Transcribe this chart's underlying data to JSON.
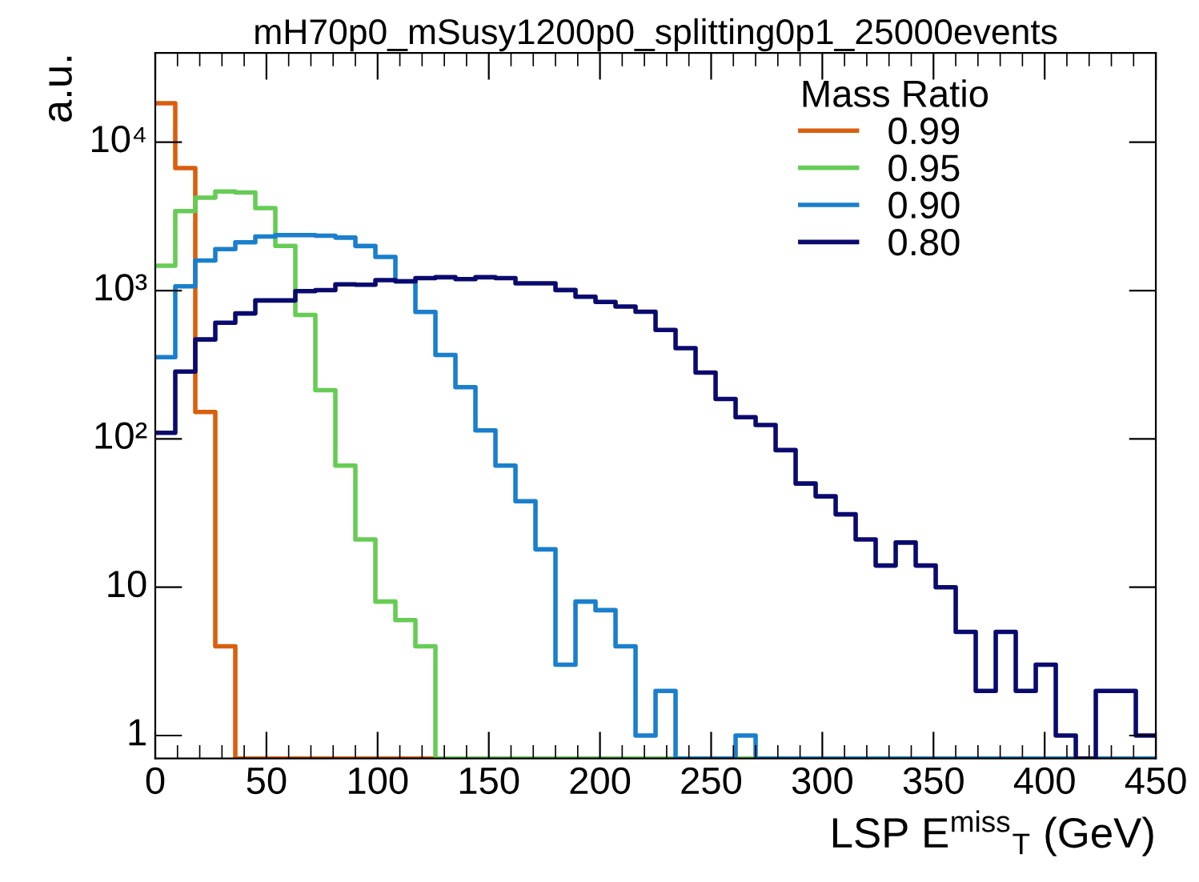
{
  "chart_data": {
    "type": "histogram",
    "title": "mH70p0_mSusy1200p0_splitting0p1_25000events",
    "xlabel": "LSP E$^{miss}$$_{T}$ (GeV)",
    "ylabel": "a.u.",
    "legend_title": "Mass Ratio",
    "legend": "top right",
    "log": "y",
    "grid": false,
    "bins": [
      0,
      9,
      18,
      27,
      36,
      45,
      54,
      63,
      72,
      81,
      90,
      99,
      108,
      117,
      126,
      135,
      144,
      153,
      162,
      171,
      180,
      189,
      198,
      207,
      216,
      225,
      234,
      243,
      252,
      261,
      270,
      279,
      288,
      297,
      306,
      315,
      324,
      333,
      342,
      351,
      360,
      369,
      378,
      387,
      396,
      405,
      414,
      423,
      432,
      441,
      450
    ],
    "series": [
      {
        "name": "0.99",
        "color": "#d95f0e",
        "values": [
          18300,
          6700,
          152,
          4,
          null,
          null,
          null,
          null,
          null,
          null,
          null,
          null,
          null,
          null,
          null,
          null,
          null,
          null,
          null,
          null,
          null,
          null,
          null,
          null,
          null,
          null,
          null,
          null,
          null,
          null,
          null,
          null,
          null,
          null,
          null,
          null,
          null,
          null,
          null,
          null,
          null,
          null,
          null,
          null,
          null,
          null,
          null,
          null,
          null,
          null
        ]
      },
      {
        "name": "0.95",
        "color": "#66cc55",
        "values": [
          1470,
          3430,
          4230,
          4660,
          4580,
          3600,
          2000,
          684,
          213,
          66,
          21,
          8,
          6,
          4,
          null,
          null,
          null,
          null,
          null,
          null,
          null,
          null,
          null,
          null,
          null,
          null,
          null,
          null,
          null,
          null,
          null,
          null,
          null,
          null,
          null,
          null,
          null,
          null,
          null,
          null,
          null,
          null,
          null,
          null,
          null,
          null,
          null,
          null,
          null,
          null
        ]
      },
      {
        "name": "0.90",
        "color": "#1a7fcc",
        "values": [
          356,
          1067,
          1595,
          1905,
          2115,
          2312,
          2367,
          2367,
          2345,
          2275,
          1997,
          1687,
          1155,
          718,
          368,
          223,
          114,
          66,
          38,
          18,
          3,
          8,
          7,
          4,
          1,
          2,
          null,
          null,
          null,
          1,
          null,
          null,
          null,
          null,
          null,
          null,
          null,
          null,
          null,
          null,
          null,
          null,
          null,
          null,
          null,
          null,
          null,
          null,
          null,
          null
        ]
      },
      {
        "name": "0.80",
        "color": "#0a0a6e",
        "values": [
          110,
          284,
          468,
          606,
          701,
          858,
          858,
          991,
          1007,
          1101,
          1094,
          1175,
          1155,
          1213,
          1230,
          1195,
          1230,
          1213,
          1120,
          1120,
          1008,
          908,
          838,
          780,
          719,
          542,
          409,
          280,
          186,
          140,
          124,
          84,
          50,
          41,
          31,
          21,
          14,
          20,
          14,
          10,
          5,
          2,
          5,
          2,
          3,
          1,
          null,
          2,
          2,
          1
        ]
      }
    ],
    "xlim": [
      0,
      450
    ],
    "xticks": [
      0,
      50,
      100,
      150,
      200,
      250,
      300,
      350,
      400,
      450
    ],
    "ylim": [
      0.7,
      40000
    ],
    "yticks": [
      1,
      10,
      {
        "value": 100,
        "label": "10²"
      },
      {
        "value": 1000,
        "label": "10³"
      },
      {
        "value": 10000,
        "label": "10⁴"
      }
    ]
  }
}
